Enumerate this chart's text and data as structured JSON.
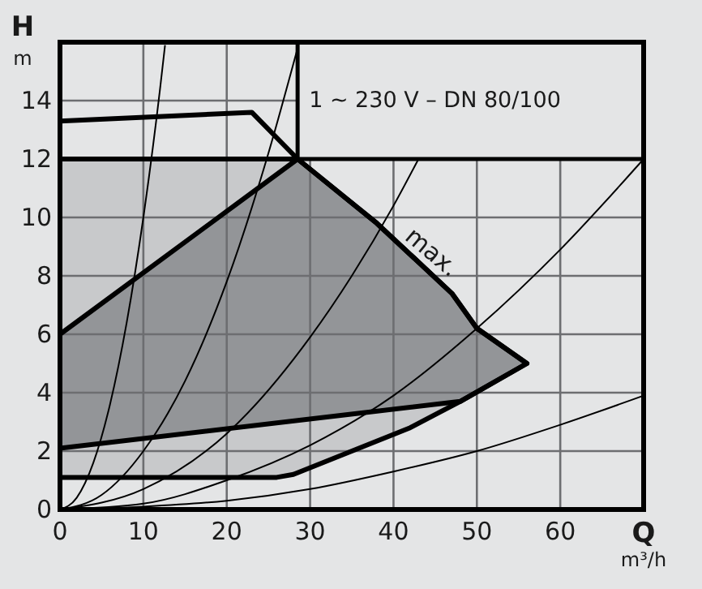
{
  "chart_data": {
    "type": "line",
    "title": "1 ~ 230 V – DN 80/100",
    "xlabel": "Q\nm³/h",
    "ylabel": "H\nm",
    "xlim": [
      0,
      70
    ],
    "xticks": [
      0,
      10,
      20,
      30,
      40,
      50,
      60
    ],
    "ylim": [
      0,
      16
    ],
    "yticks": [
      0,
      2,
      4,
      6,
      8,
      10,
      12,
      14
    ],
    "grid": true,
    "marker": "none",
    "annotations": [
      {
        "text": "max.",
        "x": 44,
        "y": 8.6
      }
    ],
    "series": [
      {
        "type": "area",
        "color": "#c8c9cb",
        "x": [
          0,
          28.5,
          38,
          47,
          50,
          56,
          48,
          42,
          35,
          28,
          26,
          0
        ],
        "values": [
          12,
          12,
          9.8,
          7.4,
          6.2,
          5,
          3.7,
          2.8,
          2,
          1.2,
          1.1,
          1.1
        ]
      },
      {
        "type": "area",
        "color": "#939598",
        "x": [
          0,
          28.5,
          38,
          47,
          50,
          56,
          48,
          0
        ],
        "values": [
          6,
          12,
          9.8,
          7.4,
          6.2,
          5,
          3.7,
          2.1
        ]
      },
      {
        "type": "area",
        "color": "#e4e5e6",
        "x": [
          0,
          23,
          28.5,
          0
        ],
        "values": [
          13.3,
          13.6,
          12,
          12
        ]
      },
      {
        "color": "#000000",
        "x": [
          0,
          2,
          4,
          6,
          8,
          10,
          12,
          12.6
        ],
        "values": [
          0,
          0.4,
          1.6,
          3.6,
          6.4,
          10,
          14.4,
          15.9
        ]
      },
      {
        "color": "#000000",
        "x": [
          0,
          5,
          10,
          15,
          20,
          25,
          28.6
        ],
        "values": [
          0,
          0.5,
          2,
          4.4,
          7.8,
          12.2,
          15.9
        ]
      },
      {
        "color": "#000000",
        "x": [
          0,
          10,
          20,
          30,
          35,
          40,
          43
        ],
        "values": [
          0,
          0.7,
          2.6,
          5.9,
          8,
          10.4,
          12
        ]
      },
      {
        "color": "#000000",
        "x": [
          0,
          10,
          20,
          30,
          40,
          50,
          60,
          70
        ],
        "values": [
          0,
          0.2,
          1,
          2.2,
          3.9,
          6.2,
          8.9,
          12
        ]
      },
      {
        "color": "#000000",
        "x": [
          0,
          10,
          20,
          30,
          40,
          50,
          60,
          70
        ],
        "values": [
          0,
          0.1,
          0.3,
          0.7,
          1.3,
          2,
          2.9,
          3.9
        ]
      }
    ]
  }
}
